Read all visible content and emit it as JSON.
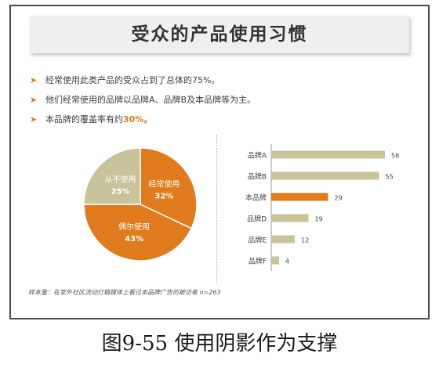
{
  "title": "受众的产品使用习惯",
  "bullets": [
    {
      "text": "经常使用此类产品的受众占到了总体的75%。",
      "highlight": ""
    },
    {
      "text": "他们经常使用的品牌以品牌A、品牌B及本品牌等为主。",
      "highlight": ""
    },
    {
      "text": "本品牌的覆盖率有约",
      "highlight": "30%。"
    }
  ],
  "footnote": "样本量：在室外社区流动灯箱媒体上看过本品牌广告的被访者 n=263",
  "caption": "图9-55 使用阴影作为支撑",
  "colors": {
    "orange": "#e07b1e",
    "tan": "#c9c39b",
    "arrow": "#e07b1e"
  },
  "chart_data": [
    {
      "type": "pie",
      "slices": [
        {
          "label": "经常使用",
          "value": 32,
          "value_label": "32%",
          "color": "#e07b1e"
        },
        {
          "label": "偶尔使用",
          "value": 43,
          "value_label": "43%",
          "color": "#e07b1e"
        },
        {
          "label": "从不使用",
          "value": 25,
          "value_label": "25%",
          "color": "#c9c39b"
        }
      ]
    },
    {
      "type": "bar",
      "orientation": "horizontal",
      "categories": [
        "品牌A",
        "品牌B",
        "本品牌",
        "品牌D",
        "品牌E",
        "品牌F"
      ],
      "values": [
        58,
        55,
        29,
        19,
        12,
        4
      ],
      "highlight": "本品牌",
      "xlim": [
        0,
        60
      ]
    }
  ]
}
